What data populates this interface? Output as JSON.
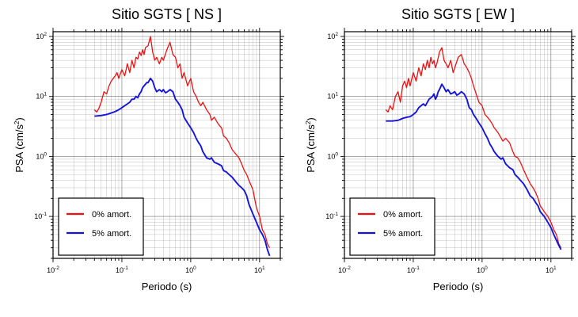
{
  "chart_data": [
    {
      "type": "line",
      "title": "Sitio SGTS [ NS ]",
      "xlabel": "Periodo (s)",
      "ylabel": "PSA (cm/s²)",
      "ylabel_base": "PSA (cm/s",
      "ylabel_exp": "2",
      "ylabel_end": ")",
      "xscale": "log",
      "yscale": "log",
      "xlim": [
        0.01,
        20
      ],
      "ylim": [
        0.02,
        120
      ],
      "xticks": [
        {
          "base": "10",
          "exp": "-2",
          "value": 0.01
        },
        {
          "base": "10",
          "exp": "-1",
          "value": 0.1
        },
        {
          "base": "10",
          "exp": "0",
          "value": 1
        },
        {
          "base": "10",
          "exp": "1",
          "value": 10
        }
      ],
      "yticks": [
        {
          "base": "10",
          "exp": "-1",
          "value": 0.1
        },
        {
          "base": "10",
          "exp": "0",
          "value": 1
        },
        {
          "base": "10",
          "exp": "1",
          "value": 10
        },
        {
          "base": "10",
          "exp": "2",
          "value": 100
        }
      ],
      "grid": true,
      "legend_position": "bottom-left",
      "series": [
        {
          "name": "0% amort.",
          "color": "#ee1111",
          "x": [
            0.04,
            0.043,
            0.046,
            0.05,
            0.055,
            0.06,
            0.065,
            0.07,
            0.075,
            0.08,
            0.085,
            0.09,
            0.1,
            0.11,
            0.12,
            0.13,
            0.14,
            0.15,
            0.16,
            0.17,
            0.18,
            0.19,
            0.2,
            0.21,
            0.22,
            0.24,
            0.26,
            0.28,
            0.3,
            0.32,
            0.35,
            0.38,
            0.4,
            0.45,
            0.5,
            0.55,
            0.6,
            0.65,
            0.7,
            0.75,
            0.8,
            0.9,
            1.0,
            1.1,
            1.2,
            1.3,
            1.4,
            1.5,
            1.7,
            1.9,
            2.0,
            2.2,
            2.5,
            2.8,
            3.0,
            3.3,
            3.6,
            4.0,
            4.5,
            5.0,
            5.5,
            6.0,
            6.5,
            7.0,
            8.0,
            9.0,
            10.0,
            11.0,
            12.0,
            13.0,
            14.0
          ],
          "y": [
            6,
            5.5,
            6.2,
            8,
            12,
            11,
            15,
            18,
            20,
            22,
            25,
            20,
            28,
            22,
            35,
            25,
            40,
            30,
            45,
            42,
            55,
            48,
            60,
            50,
            65,
            70,
            100,
            55,
            40,
            45,
            35,
            45,
            40,
            60,
            80,
            50,
            45,
            30,
            35,
            20,
            25,
            15,
            20,
            12,
            10,
            8,
            7,
            8,
            6,
            5,
            4,
            4.5,
            3.5,
            3,
            2.2,
            2,
            1.7,
            1.3,
            1.1,
            0.95,
            0.75,
            0.58,
            0.5,
            0.4,
            0.28,
            0.14,
            0.1,
            0.06,
            0.05,
            0.035,
            0.03
          ]
        },
        {
          "name": "5% amort.",
          "color": "#1414dd",
          "x": [
            0.04,
            0.05,
            0.06,
            0.07,
            0.08,
            0.09,
            0.1,
            0.11,
            0.12,
            0.13,
            0.14,
            0.15,
            0.16,
            0.17,
            0.18,
            0.19,
            0.2,
            0.21,
            0.22,
            0.23,
            0.24,
            0.26,
            0.28,
            0.3,
            0.32,
            0.35,
            0.38,
            0.4,
            0.43,
            0.46,
            0.5,
            0.55,
            0.6,
            0.65,
            0.7,
            0.75,
            0.8,
            0.9,
            1.0,
            1.1,
            1.2,
            1.3,
            1.4,
            1.5,
            1.7,
            1.9,
            2.0,
            2.2,
            2.5,
            2.8,
            3.0,
            3.3,
            3.6,
            4.0,
            4.5,
            5.0,
            5.5,
            6.0,
            6.5,
            7.0,
            8.0,
            9.0,
            10.0,
            11.0,
            12.0,
            13.0,
            14.0
          ],
          "y": [
            4.7,
            4.8,
            5.0,
            5.3,
            5.6,
            6.0,
            6.5,
            7.0,
            7.5,
            8.0,
            9.0,
            9.0,
            10.0,
            9.5,
            11.0,
            12.0,
            14.0,
            15.0,
            16.0,
            17.0,
            17.0,
            20.0,
            18.0,
            14.0,
            12.0,
            13.0,
            12.0,
            13.0,
            11.5,
            12.0,
            13.0,
            12.0,
            9.0,
            8.0,
            7.0,
            6.0,
            4.5,
            3.6,
            3.0,
            2.5,
            2.0,
            1.7,
            1.5,
            1.2,
            0.95,
            0.9,
            0.95,
            0.8,
            0.75,
            0.7,
            0.58,
            0.55,
            0.5,
            0.45,
            0.38,
            0.33,
            0.3,
            0.27,
            0.22,
            0.16,
            0.11,
            0.08,
            0.06,
            0.05,
            0.04,
            0.028,
            0.022
          ]
        }
      ]
    },
    {
      "type": "line",
      "title": "Sitio SGTS [ EW ]",
      "xlabel": "Periodo (s)",
      "ylabel": "PSA (cm/s²)",
      "ylabel_base": "PSA (cm/s",
      "ylabel_exp": "2",
      "ylabel_end": ")",
      "xscale": "log",
      "yscale": "log",
      "xlim": [
        0.01,
        20
      ],
      "ylim": [
        0.02,
        120
      ],
      "xticks": [
        {
          "base": "10",
          "exp": "-2",
          "value": 0.01
        },
        {
          "base": "10",
          "exp": "-1",
          "value": 0.1
        },
        {
          "base": "10",
          "exp": "0",
          "value": 1
        },
        {
          "base": "10",
          "exp": "1",
          "value": 10
        }
      ],
      "yticks": [
        {
          "base": "10",
          "exp": "-1",
          "value": 0.1
        },
        {
          "base": "10",
          "exp": "0",
          "value": 1
        },
        {
          "base": "10",
          "exp": "1",
          "value": 10
        },
        {
          "base": "10",
          "exp": "2",
          "value": 100
        }
      ],
      "grid": true,
      "legend_position": "bottom-left",
      "series": [
        {
          "name": "0% amort.",
          "color": "#ee1111",
          "x": [
            0.04,
            0.043,
            0.046,
            0.05,
            0.055,
            0.06,
            0.065,
            0.07,
            0.075,
            0.08,
            0.085,
            0.09,
            0.1,
            0.11,
            0.12,
            0.13,
            0.14,
            0.15,
            0.16,
            0.17,
            0.18,
            0.19,
            0.2,
            0.21,
            0.22,
            0.24,
            0.26,
            0.28,
            0.3,
            0.32,
            0.35,
            0.38,
            0.4,
            0.45,
            0.5,
            0.55,
            0.6,
            0.65,
            0.7,
            0.75,
            0.8,
            0.9,
            1.0,
            1.1,
            1.2,
            1.3,
            1.4,
            1.5,
            1.7,
            1.9,
            2.0,
            2.2,
            2.5,
            2.8,
            3.0,
            3.3,
            3.6,
            4.0,
            4.5,
            5.0,
            5.5,
            6.0,
            6.5,
            7.0,
            8.0,
            9.0,
            10.0,
            11.0,
            12.0,
            13.0,
            14.0
          ],
          "y": [
            6,
            5.5,
            7,
            6,
            10,
            12,
            8,
            15,
            18,
            14,
            20,
            15,
            25,
            18,
            30,
            22,
            35,
            28,
            40,
            30,
            45,
            35,
            40,
            30,
            35,
            55,
            65,
            40,
            35,
            30,
            40,
            25,
            30,
            45,
            50,
            35,
            30,
            25,
            20,
            15,
            12,
            8,
            7,
            5,
            4.5,
            4,
            3.5,
            3,
            2.5,
            2,
            1.8,
            2,
            1.7,
            1.2,
            1,
            0.95,
            0.8,
            0.6,
            0.45,
            0.35,
            0.3,
            0.25,
            0.2,
            0.15,
            0.12,
            0.1,
            0.08,
            0.06,
            0.05,
            0.035,
            0.03
          ]
        },
        {
          "name": "5% amort.",
          "color": "#1414dd",
          "x": [
            0.04,
            0.05,
            0.06,
            0.07,
            0.08,
            0.09,
            0.1,
            0.11,
            0.12,
            0.13,
            0.14,
            0.15,
            0.16,
            0.17,
            0.18,
            0.19,
            0.2,
            0.21,
            0.22,
            0.23,
            0.24,
            0.26,
            0.28,
            0.3,
            0.32,
            0.35,
            0.38,
            0.4,
            0.43,
            0.46,
            0.5,
            0.55,
            0.6,
            0.65,
            0.7,
            0.75,
            0.8,
            0.9,
            1.0,
            1.1,
            1.2,
            1.3,
            1.4,
            1.5,
            1.7,
            1.9,
            2.0,
            2.2,
            2.5,
            2.8,
            3.0,
            3.3,
            3.6,
            4.0,
            4.5,
            5.0,
            5.5,
            6.0,
            6.5,
            7.0,
            8.0,
            9.0,
            10.0,
            11.0,
            12.0,
            13.0,
            14.0
          ],
          "y": [
            3.9,
            3.9,
            4.0,
            4.3,
            4.5,
            4.6,
            5.0,
            5.5,
            6.5,
            7.0,
            7.5,
            7.0,
            8.0,
            9.0,
            9.5,
            10.0,
            11.0,
            9.0,
            10.0,
            12.0,
            13.0,
            16.0,
            14.0,
            12.0,
            13.0,
            11.0,
            11.5,
            12.0,
            10.5,
            11.0,
            12.0,
            11.0,
            9.0,
            6.5,
            6.0,
            5.0,
            4.5,
            3.6,
            3.0,
            2.4,
            2.0,
            1.6,
            1.4,
            1.2,
            1.0,
            0.9,
            0.95,
            0.75,
            0.65,
            0.6,
            0.5,
            0.45,
            0.4,
            0.35,
            0.28,
            0.22,
            0.2,
            0.17,
            0.15,
            0.12,
            0.1,
            0.08,
            0.065,
            0.05,
            0.04,
            0.033,
            0.028
          ]
        }
      ]
    }
  ]
}
